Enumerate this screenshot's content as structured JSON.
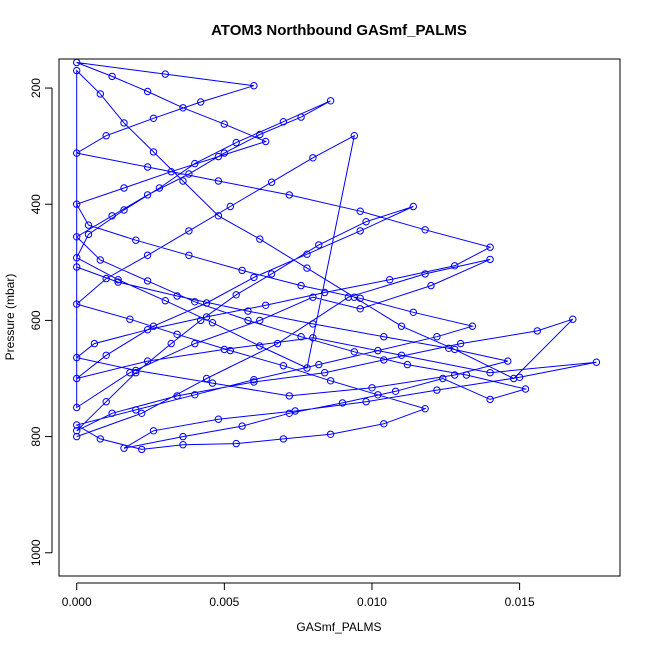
{
  "chart_data": {
    "type": "line",
    "title": "ATOM3 Northbound GASmf_PALMS",
    "xlabel": "GASmf_PALMS",
    "ylabel": "Pressure (mbar)",
    "xlim": [
      -0.0006,
      0.0184
    ],
    "ylim": [
      1040,
      150
    ],
    "y_reversed": true,
    "x_ticks": [
      0.0,
      0.005,
      0.01,
      0.015
    ],
    "x_tick_labels": [
      "0.000",
      "0.005",
      "0.010",
      "0.015"
    ],
    "y_ticks": [
      200,
      400,
      600,
      800,
      1000
    ],
    "y_tick_labels": [
      "200",
      "400",
      "600",
      "800",
      "1000"
    ],
    "grid": false,
    "legend": "none",
    "series": [
      {
        "color": "#0000ff",
        "marker": "open-circle",
        "points": [
          [
            0.0,
            800
          ],
          [
            0.0022,
            760
          ],
          [
            0.0044,
            700
          ],
          [
            0.0068,
            640
          ],
          [
            0.0092,
            560
          ],
          [
            0.0118,
            520
          ],
          [
            0.014,
            495
          ],
          [
            0.012,
            540
          ],
          [
            0.0096,
            580
          ],
          [
            0.008,
            560
          ],
          [
            0.0062,
            600
          ],
          [
            0.004,
            640
          ],
          [
            0.0018,
            690
          ],
          [
            0.0,
            750
          ],
          [
            0.0,
            170
          ],
          [
            0.0008,
            210
          ],
          [
            0.0016,
            260
          ],
          [
            0.0026,
            310
          ],
          [
            0.0036,
            360
          ],
          [
            0.0048,
            420
          ],
          [
            0.0062,
            460
          ],
          [
            0.0078,
            510
          ],
          [
            0.0094,
            560
          ],
          [
            0.011,
            610
          ],
          [
            0.0128,
            650
          ],
          [
            0.0148,
            700
          ],
          [
            0.0168,
            598
          ],
          [
            0.0156,
            618
          ],
          [
            0.013,
            640
          ],
          [
            0.0104,
            668
          ],
          [
            0.0084,
            690
          ],
          [
            0.006,
            706
          ],
          [
            0.0034,
            730
          ],
          [
            0.0012,
            760
          ],
          [
            0.0,
            790
          ],
          [
            0.001,
            740
          ],
          [
            0.002,
            690
          ],
          [
            0.0032,
            640
          ],
          [
            0.0042,
            600
          ],
          [
            0.0054,
            556
          ],
          [
            0.0066,
            520
          ],
          [
            0.0082,
            470
          ],
          [
            0.0098,
            430
          ],
          [
            0.0114,
            404
          ],
          [
            0.0096,
            446
          ],
          [
            0.0078,
            486
          ],
          [
            0.006,
            526
          ],
          [
            0.0044,
            570
          ],
          [
            0.0026,
            610
          ],
          [
            0.001,
            660
          ],
          [
            0.0,
            700
          ],
          [
            0.0024,
            670
          ],
          [
            0.005,
            650
          ],
          [
            0.008,
            630
          ],
          [
            0.011,
            660
          ],
          [
            0.014,
            690
          ],
          [
            0.0176,
            672
          ],
          [
            0.015,
            698
          ],
          [
            0.0122,
            720
          ],
          [
            0.0098,
            740
          ],
          [
            0.0074,
            756
          ],
          [
            0.0048,
            770
          ],
          [
            0.0026,
            790
          ],
          [
            0.0016,
            820
          ],
          [
            0.0036,
            800
          ],
          [
            0.0056,
            782
          ],
          [
            0.0072,
            760
          ],
          [
            0.009,
            742
          ],
          [
            0.0108,
            722
          ],
          [
            0.0124,
            700
          ],
          [
            0.014,
            736
          ],
          [
            0.0152,
            718
          ],
          [
            0.0132,
            694
          ],
          [
            0.0112,
            676
          ],
          [
            0.0094,
            654
          ],
          [
            0.0076,
            628
          ],
          [
            0.0058,
            600
          ],
          [
            0.004,
            568
          ],
          [
            0.0024,
            532
          ],
          [
            0.0008,
            496
          ],
          [
            0.0,
            456
          ],
          [
            0.0012,
            420
          ],
          [
            0.0024,
            384
          ],
          [
            0.0038,
            348
          ],
          [
            0.005,
            312
          ],
          [
            0.0062,
            280
          ],
          [
            0.0076,
            250
          ],
          [
            0.0086,
            222
          ],
          [
            0.007,
            258
          ],
          [
            0.0054,
            294
          ],
          [
            0.004,
            330
          ],
          [
            0.0028,
            372
          ],
          [
            0.0016,
            410
          ],
          [
            0.0004,
            452
          ],
          [
            0.0,
            492
          ],
          [
            0.0014,
            530
          ],
          [
            0.003,
            566
          ],
          [
            0.0046,
            604
          ],
          [
            0.0062,
            644
          ],
          [
            0.0078,
            682
          ],
          [
            0.0094,
            282
          ],
          [
            0.008,
            320
          ],
          [
            0.0066,
            362
          ],
          [
            0.0052,
            404
          ],
          [
            0.0038,
            446
          ],
          [
            0.0024,
            488
          ],
          [
            0.001,
            528
          ],
          [
            0.0,
            572
          ],
          [
            0.0018,
            598
          ],
          [
            0.0034,
            624
          ],
          [
            0.0052,
            652
          ],
          [
            0.007,
            678
          ],
          [
            0.0086,
            704
          ],
          [
            0.0102,
            728
          ],
          [
            0.0118,
            752
          ],
          [
            0.0104,
            778
          ],
          [
            0.0086,
            796
          ],
          [
            0.007,
            804
          ],
          [
            0.0054,
            812
          ],
          [
            0.0036,
            814
          ],
          [
            0.0022,
            822
          ],
          [
            0.0008,
            804
          ],
          [
            0.0,
            780
          ],
          [
            0.002,
            754
          ],
          [
            0.004,
            728
          ],
          [
            0.006,
            702
          ],
          [
            0.0082,
            676
          ],
          [
            0.0102,
            652
          ],
          [
            0.0122,
            628
          ],
          [
            0.0134,
            610
          ],
          [
            0.0114,
            586
          ],
          [
            0.0096,
            562
          ],
          [
            0.0076,
            540
          ],
          [
            0.0056,
            514
          ],
          [
            0.0038,
            488
          ],
          [
            0.002,
            462
          ],
          [
            0.0004,
            436
          ],
          [
            0.0,
            400
          ],
          [
            0.0016,
            372
          ],
          [
            0.0032,
            344
          ],
          [
            0.0048,
            318
          ],
          [
            0.0064,
            292
          ],
          [
            0.005,
            262
          ],
          [
            0.0036,
            234
          ],
          [
            0.0024,
            206
          ],
          [
            0.0012,
            180
          ],
          [
            0.0,
            156
          ],
          [
            0.003,
            176
          ],
          [
            0.006,
            196
          ],
          [
            0.0042,
            224
          ],
          [
            0.0026,
            252
          ],
          [
            0.001,
            282
          ],
          [
            0.0,
            312
          ],
          [
            0.0024,
            336
          ],
          [
            0.0048,
            360
          ],
          [
            0.0072,
            384
          ],
          [
            0.0096,
            412
          ],
          [
            0.0118,
            444
          ],
          [
            0.014,
            474
          ],
          [
            0.0128,
            506
          ],
          [
            0.0106,
            530
          ],
          [
            0.0084,
            552
          ],
          [
            0.0064,
            574
          ],
          [
            0.0044,
            594
          ],
          [
            0.0024,
            616
          ],
          [
            0.0006,
            640
          ],
          [
            0.0,
            664
          ],
          [
            0.002,
            686
          ],
          [
            0.0046,
            708
          ],
          [
            0.0072,
            730
          ],
          [
            0.01,
            716
          ],
          [
            0.0128,
            694
          ],
          [
            0.0146,
            670
          ],
          [
            0.0126,
            648
          ],
          [
            0.0104,
            628
          ],
          [
            0.008,
            606
          ],
          [
            0.0058,
            584
          ],
          [
            0.0034,
            558
          ],
          [
            0.0014,
            534
          ],
          [
            0.0,
            508
          ]
        ]
      }
    ]
  }
}
